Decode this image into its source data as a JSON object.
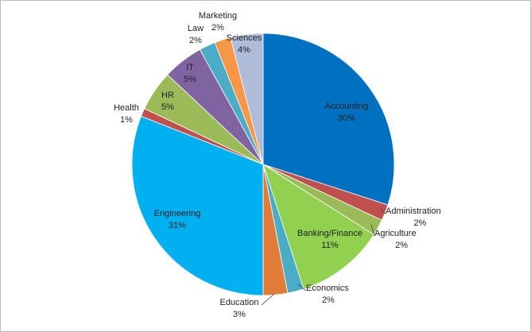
{
  "chart_data": {
    "type": "pie",
    "title": "",
    "categories": [
      "Accounting",
      "Administration",
      "Agriculture",
      "Banking/Finance",
      "Economics",
      "Education",
      "Engineering",
      "Health",
      "HR",
      "IT",
      "Law",
      "Marketing",
      "Sciences"
    ],
    "values": [
      30,
      2,
      2,
      11,
      2,
      3,
      31,
      1,
      5,
      5,
      2,
      2,
      4
    ],
    "value_labels": [
      "30%",
      "2%",
      "2%",
      "11%",
      "2%",
      "3%",
      "31%",
      "1%",
      "5%",
      "5%",
      "2%",
      "2%",
      "4%"
    ],
    "colors": [
      "#0070c0",
      "#c0504d",
      "#9bbb59",
      "#92d050",
      "#4bacc6",
      "#e07b39",
      "#00b0f0",
      "#c0504d",
      "#9bbb59",
      "#8064a2",
      "#4bacc6",
      "#f79646",
      "#aebcd8"
    ],
    "start_angle_deg": 0,
    "direction": "clockwise",
    "legend": "none"
  }
}
